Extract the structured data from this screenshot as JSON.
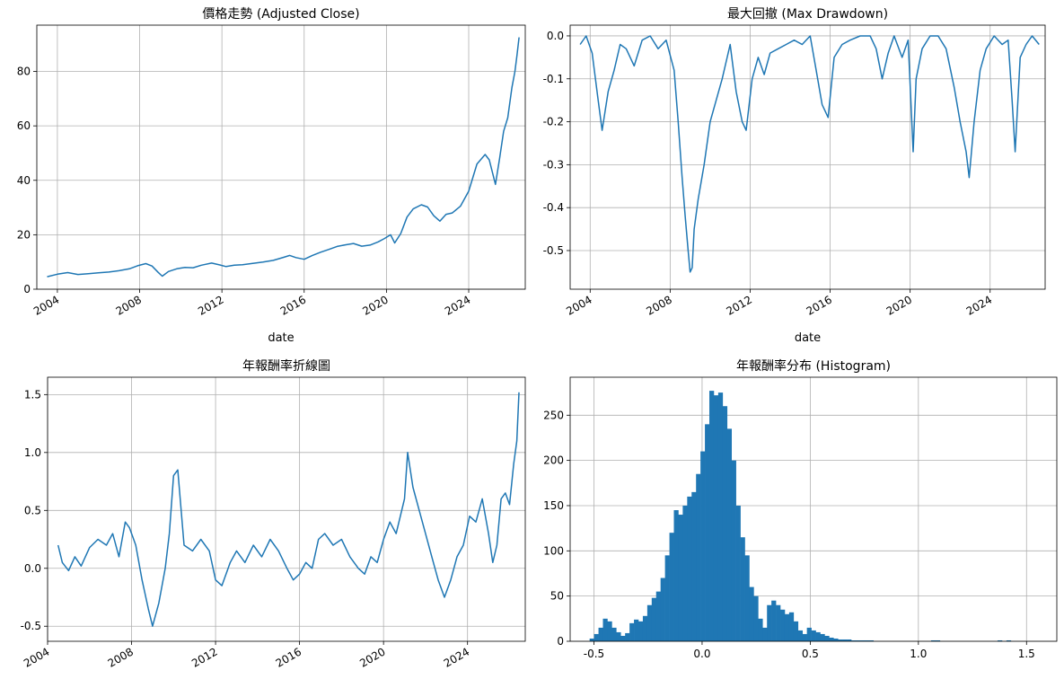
{
  "colors": {
    "series": "#1f77b4",
    "grid": "#b0b0b0"
  },
  "chart_data": [
    {
      "type": "line",
      "title": "價格走勢 (Adjusted Close)",
      "xlabel": "date",
      "ylabel": "",
      "xlim": [
        2003.0,
        2026.75
      ],
      "ylim": [
        0,
        97
      ],
      "xticks": [
        2004,
        2008,
        2012,
        2016,
        2020,
        2024
      ],
      "xtick_labels": [
        "2004",
        "2008",
        "2012",
        "2016",
        "2020",
        "2024"
      ],
      "yticks": [
        0,
        20,
        40,
        60,
        80
      ],
      "ytick_labels": [
        "0",
        "20",
        "40",
        "60",
        "80"
      ],
      "x_tick_rotation": 30,
      "grid": true,
      "series": [
        {
          "x": [
            2003.5,
            2004.0,
            2004.5,
            2005.0,
            2005.5,
            2006.0,
            2006.5,
            2007.0,
            2007.5,
            2007.9,
            2008.3,
            2008.6,
            2008.9,
            2009.1,
            2009.4,
            2009.8,
            2010.2,
            2010.6,
            2011.0,
            2011.5,
            2011.9,
            2012.2,
            2012.6,
            2013.0,
            2013.5,
            2014.0,
            2014.5,
            2015.0,
            2015.3,
            2015.6,
            2016.0,
            2016.4,
            2016.8,
            2017.2,
            2017.6,
            2018.0,
            2018.4,
            2018.8,
            2019.2,
            2019.6,
            2019.9,
            2020.2,
            2020.4,
            2020.7,
            2021.0,
            2021.3,
            2021.7,
            2022.0,
            2022.3,
            2022.6,
            2022.9,
            2023.2,
            2023.6,
            2024.0,
            2024.4,
            2024.8,
            2025.0,
            2025.3,
            2025.5,
            2025.7,
            2025.9,
            2026.1,
            2026.25,
            2026.35,
            2026.45
          ],
          "y": [
            4.6,
            5.5,
            6.1,
            5.4,
            5.7,
            6.0,
            6.3,
            6.8,
            7.5,
            8.6,
            9.4,
            8.5,
            6.2,
            4.8,
            6.5,
            7.5,
            8.0,
            7.9,
            8.8,
            9.6,
            8.9,
            8.3,
            8.8,
            9.0,
            9.5,
            10.0,
            10.6,
            11.7,
            12.4,
            11.6,
            11.0,
            12.4,
            13.6,
            14.6,
            15.7,
            16.3,
            16.8,
            15.8,
            16.2,
            17.4,
            18.6,
            20.0,
            17.0,
            20.5,
            26.5,
            29.5,
            31.0,
            30.2,
            27.0,
            25.0,
            27.5,
            28.0,
            30.5,
            36.0,
            46.0,
            49.5,
            47.5,
            38.5,
            48.0,
            58.0,
            63.0,
            74.0,
            80.0,
            86.0,
            92.5
          ]
        }
      ]
    },
    {
      "type": "line",
      "title": "最大回撤 (Max Drawdown)",
      "xlabel": "date",
      "ylabel": "",
      "xlim": [
        2003.0,
        2026.75
      ],
      "ylim": [
        -0.59,
        0.025
      ],
      "xticks": [
        2004,
        2008,
        2012,
        2016,
        2020,
        2024
      ],
      "xtick_labels": [
        "2004",
        "2008",
        "2012",
        "2016",
        "2020",
        "2024"
      ],
      "yticks": [
        0.0,
        -0.1,
        -0.2,
        -0.3,
        -0.4,
        -0.5
      ],
      "ytick_labels": [
        "0.0",
        "-0.1",
        "-0.2",
        "-0.3",
        "-0.4",
        "-0.5"
      ],
      "x_tick_rotation": 30,
      "grid": true,
      "series": [
        {
          "x": [
            2003.5,
            2003.8,
            2004.1,
            2004.4,
            2004.6,
            2004.9,
            2005.2,
            2005.5,
            2005.8,
            2006.2,
            2006.6,
            2007.0,
            2007.4,
            2007.8,
            2008.2,
            2008.4,
            2008.6,
            2008.75,
            2008.9,
            2009.0,
            2009.1,
            2009.2,
            2009.4,
            2009.7,
            2010.0,
            2010.3,
            2010.6,
            2011.0,
            2011.3,
            2011.6,
            2011.8,
            2012.1,
            2012.4,
            2012.7,
            2013.0,
            2013.4,
            2013.8,
            2014.2,
            2014.6,
            2015.0,
            2015.3,
            2015.6,
            2015.9,
            2016.2,
            2016.6,
            2017.0,
            2017.5,
            2018.0,
            2018.3,
            2018.6,
            2018.9,
            2019.2,
            2019.6,
            2019.9,
            2020.15,
            2020.3,
            2020.6,
            2021.0,
            2021.4,
            2021.8,
            2022.2,
            2022.5,
            2022.8,
            2022.95,
            2023.2,
            2023.5,
            2023.8,
            2024.2,
            2024.6,
            2024.9,
            2025.1,
            2025.25,
            2025.5,
            2025.8,
            2026.1,
            2026.45
          ],
          "y": [
            -0.02,
            0.0,
            -0.04,
            -0.15,
            -0.22,
            -0.13,
            -0.08,
            -0.02,
            -0.03,
            -0.07,
            -0.01,
            0.0,
            -0.03,
            -0.01,
            -0.08,
            -0.2,
            -0.33,
            -0.42,
            -0.5,
            -0.55,
            -0.54,
            -0.45,
            -0.38,
            -0.3,
            -0.2,
            -0.15,
            -0.1,
            -0.02,
            -0.13,
            -0.2,
            -0.22,
            -0.1,
            -0.05,
            -0.09,
            -0.04,
            -0.03,
            -0.02,
            -0.01,
            -0.02,
            0.0,
            -0.08,
            -0.16,
            -0.19,
            -0.05,
            -0.02,
            -0.01,
            0.0,
            0.0,
            -0.03,
            -0.1,
            -0.04,
            0.0,
            -0.05,
            -0.01,
            -0.27,
            -0.1,
            -0.03,
            0.0,
            0.0,
            -0.03,
            -0.12,
            -0.2,
            -0.27,
            -0.33,
            -0.2,
            -0.08,
            -0.03,
            0.0,
            -0.02,
            -0.01,
            -0.15,
            -0.27,
            -0.05,
            -0.02,
            0.0,
            -0.02
          ]
        }
      ]
    },
    {
      "type": "line",
      "title": "年報酬率折線圖",
      "xlabel": "",
      "ylabel": "",
      "xlim": [
        2004.0,
        2026.75
      ],
      "ylim": [
        -0.63,
        1.65
      ],
      "xticks": [
        2004,
        2008,
        2012,
        2016,
        2020,
        2024
      ],
      "xtick_labels": [
        "2004",
        "2008",
        "2012",
        "2016",
        "2020",
        "2024"
      ],
      "yticks": [
        1.5,
        1.0,
        0.5,
        0.0,
        -0.5
      ],
      "ytick_labels": [
        "1.5",
        "1.0",
        "0.5",
        "0.0",
        "-0.5"
      ],
      "x_tick_rotation": 30,
      "grid": true,
      "series": [
        {
          "x": [
            2004.5,
            2004.7,
            2005.0,
            2005.3,
            2005.6,
            2006.0,
            2006.4,
            2006.8,
            2007.1,
            2007.4,
            2007.7,
            2007.9,
            2008.2,
            2008.5,
            2008.8,
            2009.0,
            2009.3,
            2009.6,
            2009.8,
            2010.0,
            2010.2,
            2010.5,
            2010.9,
            2011.3,
            2011.7,
            2012.0,
            2012.3,
            2012.7,
            2013.0,
            2013.4,
            2013.8,
            2014.2,
            2014.6,
            2015.0,
            2015.4,
            2015.7,
            2016.0,
            2016.3,
            2016.6,
            2016.9,
            2017.2,
            2017.6,
            2018.0,
            2018.4,
            2018.8,
            2019.1,
            2019.4,
            2019.7,
            2020.0,
            2020.3,
            2020.6,
            2021.0,
            2021.15,
            2021.4,
            2021.7,
            2022.0,
            2022.3,
            2022.6,
            2022.9,
            2023.2,
            2023.5,
            2023.8,
            2024.1,
            2024.4,
            2024.7,
            2025.0,
            2025.2,
            2025.4,
            2025.6,
            2025.8,
            2026.0,
            2026.2,
            2026.35,
            2026.45
          ],
          "y": [
            0.2,
            0.05,
            -0.02,
            0.1,
            0.02,
            0.18,
            0.25,
            0.2,
            0.3,
            0.1,
            0.4,
            0.35,
            0.2,
            -0.1,
            -0.35,
            -0.5,
            -0.3,
            0.0,
            0.3,
            0.8,
            0.85,
            0.2,
            0.15,
            0.25,
            0.15,
            -0.1,
            -0.15,
            0.05,
            0.15,
            0.05,
            0.2,
            0.1,
            0.25,
            0.15,
            0.0,
            -0.1,
            -0.05,
            0.05,
            0.0,
            0.25,
            0.3,
            0.2,
            0.25,
            0.1,
            0.0,
            -0.05,
            0.1,
            0.05,
            0.25,
            0.4,
            0.3,
            0.6,
            1.0,
            0.7,
            0.5,
            0.3,
            0.1,
            -0.1,
            -0.25,
            -0.1,
            0.1,
            0.2,
            0.45,
            0.4,
            0.6,
            0.3,
            0.05,
            0.2,
            0.6,
            0.65,
            0.55,
            0.9,
            1.1,
            1.52
          ]
        }
      ]
    },
    {
      "type": "bar",
      "title": "年報酬率分布 (Histogram)",
      "xlabel": "",
      "ylabel": "",
      "xlim": [
        -0.61,
        1.64
      ],
      "ylim": [
        0,
        292
      ],
      "xticks": [
        -0.5,
        0.0,
        0.5,
        1.0,
        1.5
      ],
      "xtick_labels": [
        "-0.5",
        "0.0",
        "0.5",
        "1.0",
        "1.5"
      ],
      "yticks": [
        0,
        50,
        100,
        150,
        200,
        250
      ],
      "ytick_labels": [
        "0",
        "50",
        "100",
        "150",
        "200",
        "250"
      ],
      "x_tick_rotation": 0,
      "grid": true,
      "bin_start": -0.52,
      "bin_width": 0.0205,
      "counts": [
        3,
        8,
        15,
        25,
        22,
        15,
        10,
        6,
        9,
        20,
        24,
        22,
        28,
        40,
        48,
        55,
        70,
        95,
        120,
        145,
        140,
        150,
        160,
        165,
        185,
        210,
        240,
        277,
        272,
        275,
        260,
        235,
        200,
        150,
        115,
        95,
        60,
        50,
        25,
        15,
        40,
        45,
        40,
        35,
        30,
        32,
        22,
        12,
        8,
        15,
        12,
        10,
        8,
        6,
        4,
        3,
        2,
        2,
        2,
        1,
        1,
        1,
        1,
        1,
        0,
        0,
        0,
        0,
        0,
        0,
        0,
        0,
        0,
        0,
        0,
        0,
        0,
        1,
        1,
        0,
        0,
        0,
        0,
        0,
        0,
        0,
        0,
        0,
        0,
        0,
        0,
        0,
        1,
        0,
        1
      ]
    }
  ]
}
